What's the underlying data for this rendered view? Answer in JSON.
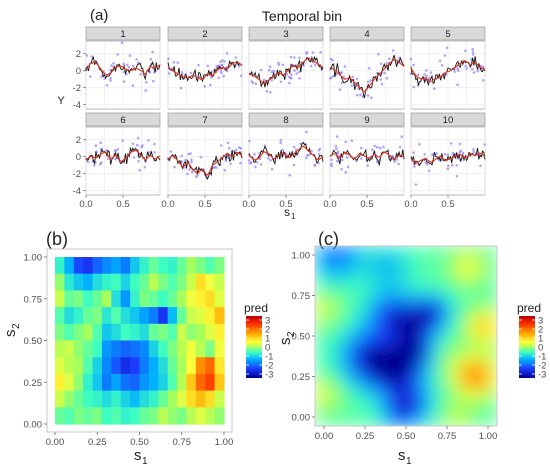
{
  "panel_labels": {
    "a": "(a)",
    "b": "(b)",
    "c": "(c)"
  },
  "chart_data": [
    {
      "type": "scatter",
      "panel": "(a)",
      "title": "Temporal bin",
      "xlabel_main": "s",
      "xlabel_sub": "1",
      "ylabel": "Y",
      "facets": [
        "1",
        "2",
        "3",
        "4",
        "5",
        "6",
        "7",
        "8",
        "9",
        "10"
      ],
      "xlim": [
        0,
        1
      ],
      "ylim": [
        -4.5,
        3.5
      ],
      "x_ticks": [
        "0.0",
        "0.5"
      ],
      "y_ticks": [
        "2",
        "0",
        "-2",
        "-4"
      ],
      "series": [
        {
          "role": "observed points",
          "color": "#8f7cff"
        },
        {
          "role": "prediction line",
          "color": "#e8301c"
        },
        {
          "role": "true line",
          "color": "#111111"
        }
      ],
      "facet_curves": [
        [
          0.2,
          0.9,
          1.0,
          0.2,
          -0.5,
          -0.3,
          0.4,
          0.6,
          0.2,
          0.0,
          0.3,
          0.1,
          -0.4,
          0.5,
          0.3,
          0.7
        ],
        [
          0.3,
          0.0,
          -0.4,
          -0.7,
          -0.9,
          -0.5,
          -0.8,
          -1.1,
          -0.3,
          -0.6,
          0.1,
          0.4,
          0.2,
          0.8,
          1.1,
          0.6
        ],
        [
          -0.4,
          -0.6,
          -1.0,
          -1.5,
          -1.1,
          -0.7,
          -0.2,
          -0.5,
          0.1,
          0.6,
          0.4,
          1.0,
          1.5,
          1.2,
          0.8,
          0.4
        ],
        [
          0.4,
          0.1,
          -0.5,
          -1.0,
          -0.8,
          -1.4,
          -2.0,
          -2.5,
          -1.8,
          -1.0,
          -0.4,
          0.2,
          0.8,
          1.4,
          1.0,
          0.5
        ],
        [
          0.3,
          -0.6,
          -1.0,
          -0.8,
          -1.3,
          -0.9,
          -0.7,
          -0.2,
          0.0,
          0.4,
          0.9,
          1.2,
          0.7,
          1.0,
          0.4,
          0.1
        ],
        [
          -0.4,
          0.1,
          -0.2,
          0.3,
          0.6,
          -0.3,
          0.2,
          -0.6,
          -0.2,
          0.5,
          0.8,
          0.3,
          -0.4,
          0.2,
          -0.3,
          0.1
        ],
        [
          -0.3,
          0.2,
          -0.5,
          -1.2,
          -0.6,
          -1.5,
          -2.0,
          -1.4,
          -2.3,
          -1.0,
          -0.6,
          -0.1,
          0.4,
          0.0,
          0.6,
          0.1
        ],
        [
          0.2,
          -0.4,
          -0.2,
          0.6,
          0.4,
          -0.3,
          0.1,
          0.5,
          -0.2,
          0.3,
          0.8,
          1.3,
          0.7,
          0.2,
          -0.4,
          0.0
        ],
        [
          0.1,
          0.4,
          -0.2,
          0.5,
          0.2,
          -0.3,
          0.4,
          0.1,
          -0.2,
          0.3,
          -0.1,
          0.6,
          0.2,
          -0.3,
          0.2,
          0.0
        ],
        [
          -0.3,
          -0.8,
          -0.4,
          -0.2,
          -0.7,
          -0.3,
          0.1,
          -0.5,
          -0.2,
          0.0,
          0.3,
          -0.2,
          0.4,
          0.1,
          0.5,
          0.0
        ]
      ]
    },
    {
      "type": "heatmap",
      "panel": "(b)",
      "xlabel_main": "s",
      "xlabel_sub": "1",
      "ylabel_main": "s",
      "ylabel_sub": "2",
      "xlim": [
        0,
        1
      ],
      "ylim": [
        0,
        1
      ],
      "x_ticks": [
        "0.00",
        "0.25",
        "0.50",
        "0.75",
        "1.00"
      ],
      "y_ticks": [
        "0.00",
        "0.25",
        "0.50",
        "0.75",
        "1.00"
      ],
      "legend_title": "pred",
      "legend_ticks": [
        "3",
        "2",
        "1",
        "0",
        "-1",
        "-2",
        "-3"
      ],
      "color_range": [
        -3,
        3
      ],
      "grid_rows_top_to_bottom": [
        [
          -0.6,
          -1.2,
          -2.0,
          -2.2,
          -1.8,
          -1.5,
          -1.3,
          -1.6,
          -1.0,
          -0.6,
          -0.3,
          -0.5,
          -0.6,
          -0.3,
          0.0,
          -0.2,
          -0.4,
          -0.2
        ],
        [
          -0.1,
          -0.7,
          -1.0,
          -1.2,
          -0.8,
          -0.6,
          -0.5,
          -0.9,
          -0.5,
          -0.3,
          0.1,
          -0.2,
          -0.4,
          -0.2,
          0.2,
          0.8,
          0.4,
          0.2
        ],
        [
          0.2,
          -0.3,
          -0.2,
          -0.5,
          -0.3,
          0.0,
          -0.8,
          -1.4,
          -0.6,
          -0.2,
          -0.3,
          -0.5,
          -0.3,
          0.0,
          0.4,
          0.6,
          0.8,
          0.3
        ],
        [
          -0.4,
          -0.8,
          -0.6,
          -0.3,
          -0.2,
          -0.7,
          -0.4,
          -0.8,
          -1.0,
          -1.3,
          -1.6,
          -2.2,
          -1.1,
          -0.3,
          0.2,
          0.3,
          0.6,
          1.1
        ],
        [
          -0.2,
          -0.4,
          -0.2,
          0.0,
          -0.4,
          -1.0,
          -0.8,
          -0.5,
          -0.6,
          -0.8,
          -0.3,
          -0.2,
          -0.4,
          0.2,
          -0.1,
          0.0,
          0.3,
          0.6
        ],
        [
          0.1,
          0.2,
          -0.1,
          -0.3,
          -0.5,
          -1.4,
          -1.6,
          -1.8,
          -1.7,
          -1.5,
          -0.9,
          -0.5,
          -0.2,
          0.1,
          0.4,
          0.1,
          -0.2,
          0.4
        ],
        [
          0.3,
          0.1,
          0.0,
          -0.4,
          -0.9,
          -1.5,
          -1.9,
          -2.3,
          -2.1,
          -1.6,
          -1.2,
          -0.8,
          -0.3,
          0.0,
          0.5,
          1.5,
          1.8,
          0.7
        ],
        [
          0.6,
          0.3,
          -0.1,
          -0.6,
          -1.0,
          -1.6,
          -1.3,
          -1.7,
          -1.8,
          -1.4,
          -1.2,
          -0.9,
          -0.4,
          0.1,
          1.0,
          1.8,
          2.1,
          1.0
        ],
        [
          0.2,
          -0.1,
          -0.3,
          -0.5,
          -0.6,
          -0.8,
          -0.6,
          -0.9,
          -1.1,
          -0.8,
          -0.6,
          -0.3,
          0.0,
          0.3,
          0.8,
          1.1,
          0.8,
          0.2
        ],
        [
          -0.3,
          -0.4,
          -0.2,
          -0.3,
          -0.2,
          -0.5,
          -0.4,
          -0.6,
          -0.5,
          -0.3,
          -0.2,
          0.1,
          -0.1,
          -0.2,
          0.1,
          0.3,
          0.1,
          -0.1
        ]
      ]
    },
    {
      "type": "heatmap",
      "panel": "(c)",
      "xlabel_main": "s",
      "xlabel_sub": "1",
      "ylabel_main": "s",
      "ylabel_sub": "2",
      "xlim": [
        0,
        1
      ],
      "ylim": [
        0,
        1
      ],
      "x_ticks": [
        "0.00",
        "0.25",
        "0.50",
        "0.75",
        "1.00"
      ],
      "y_ticks": [
        "0.00",
        "0.25",
        "0.50",
        "0.75",
        "1.00"
      ],
      "legend_title": "pred",
      "legend_ticks": [
        "3",
        "2",
        "1",
        "0",
        "-1",
        "-2",
        "-3"
      ],
      "color_range": [
        -3,
        3
      ],
      "blobs": [
        {
          "x": 0.12,
          "y": 0.95,
          "v": -1.4,
          "r": 0.09
        },
        {
          "x": 0.4,
          "y": 0.88,
          "v": -0.8,
          "r": 0.08
        },
        {
          "x": 0.4,
          "y": 0.62,
          "v": -1.5,
          "r": 0.08
        },
        {
          "x": 0.53,
          "y": 0.58,
          "v": -2.0,
          "r": 0.08
        },
        {
          "x": 0.65,
          "y": 0.63,
          "v": -1.9,
          "r": 0.06
        },
        {
          "x": 0.3,
          "y": 0.38,
          "v": -2.3,
          "r": 0.1
        },
        {
          "x": 0.45,
          "y": 0.3,
          "v": -2.4,
          "r": 0.09
        },
        {
          "x": 0.55,
          "y": 0.42,
          "v": -2.1,
          "r": 0.07
        },
        {
          "x": 0.53,
          "y": 0.12,
          "v": -1.7,
          "r": 0.07
        },
        {
          "x": 0.45,
          "y": 0.07,
          "v": -1.2,
          "r": 0.06
        },
        {
          "x": 0.88,
          "y": 0.28,
          "v": 2.3,
          "r": 0.07
        },
        {
          "x": 0.93,
          "y": 0.55,
          "v": 1.5,
          "r": 0.06
        },
        {
          "x": 0.84,
          "y": 0.88,
          "v": 0.9,
          "r": 0.06
        },
        {
          "x": 0.05,
          "y": 0.65,
          "v": 0.6,
          "r": 0.06
        },
        {
          "x": 0.05,
          "y": 0.18,
          "v": 0.7,
          "r": 0.06
        },
        {
          "x": 0.78,
          "y": 0.05,
          "v": 0.5,
          "r": 0.06
        },
        {
          "x": 0.7,
          "y": 0.38,
          "v": 0.3,
          "r": 0.07
        }
      ]
    }
  ]
}
